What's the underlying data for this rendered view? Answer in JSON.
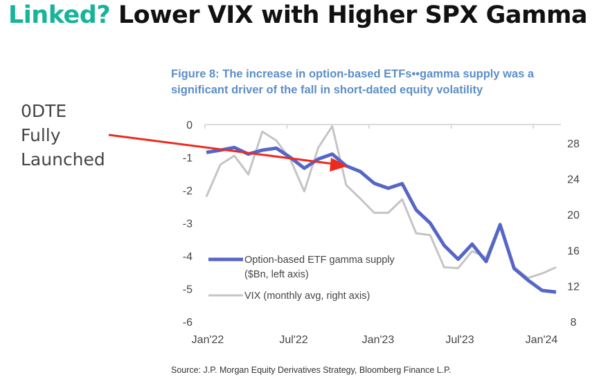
{
  "headline": {
    "accent": "Linked?",
    "rest": " Lower VIX with Higher SPX Gamma"
  },
  "annotation": {
    "lines": [
      "0DTE",
      "Fully",
      "Launched"
    ],
    "arrow_color": "#ee2a1f"
  },
  "source": "Source: J.P. Morgan Equity Derivatives Strategy, Bloomberg Finance L.P.",
  "chart_data": {
    "type": "line",
    "title": "Figure 8: The increase in option-based ETFs••gamma supply was a significant driver of the fall in short-dated equity volatility",
    "x": [
      "Jan'22",
      "Feb'22",
      "Mar'22",
      "Apr'22",
      "May'22",
      "Jun'22",
      "Jul'22",
      "Aug'22",
      "Sep'22",
      "Oct'22",
      "Nov'22",
      "Dec'22",
      "Jan'23",
      "Feb'23",
      "Mar'23",
      "Apr'23",
      "May'23",
      "Jun'23",
      "Jul'23",
      "Aug'23",
      "Sep'23",
      "Oct'23",
      "Nov'23",
      "Dec'23",
      "Jan'24",
      "Feb'24"
    ],
    "x_tick_labels": [
      "Jan'22",
      "Jul'22",
      "Jan'23",
      "Jul'23",
      "Jan'24"
    ],
    "y_left": {
      "ylim": [
        -6,
        0
      ],
      "ticks": [
        "0",
        "-1",
        "-2",
        "-3",
        "-4",
        "-5",
        "-6"
      ]
    },
    "y_right": {
      "ylim": [
        8,
        30
      ],
      "ticks": [
        "28",
        "24",
        "20",
        "16",
        "12",
        "8"
      ]
    },
    "grid": false,
    "legend_position": "lower-left",
    "series": [
      {
        "name": "Option-based ETF gamma supply",
        "name_line2": "($Bn, left axis)",
        "axis": "left",
        "color": "#5566c8",
        "values": [
          -0.85,
          -0.78,
          -0.7,
          -0.9,
          -0.78,
          -0.72,
          -1.0,
          -1.33,
          -1.05,
          -0.9,
          -1.26,
          -1.43,
          -1.79,
          -1.94,
          -1.8,
          -2.6,
          -3.0,
          -3.68,
          -4.1,
          -3.64,
          -4.17,
          -3.05,
          -4.38,
          -4.74,
          -5.05,
          -5.1
        ]
      },
      {
        "name": "VIX (monthly avg, right axis)",
        "axis": "right",
        "color": "#c4c4c4",
        "values": [
          22.0,
          25.6,
          26.6,
          24.5,
          29.3,
          28.3,
          26.2,
          22.6,
          27.5,
          29.9,
          23.3,
          21.8,
          20.2,
          20.2,
          21.7,
          17.9,
          17.7,
          14.1,
          14.0,
          15.9,
          15.2,
          19.0,
          14.1,
          12.9,
          13.4,
          14.1
        ]
      }
    ]
  }
}
